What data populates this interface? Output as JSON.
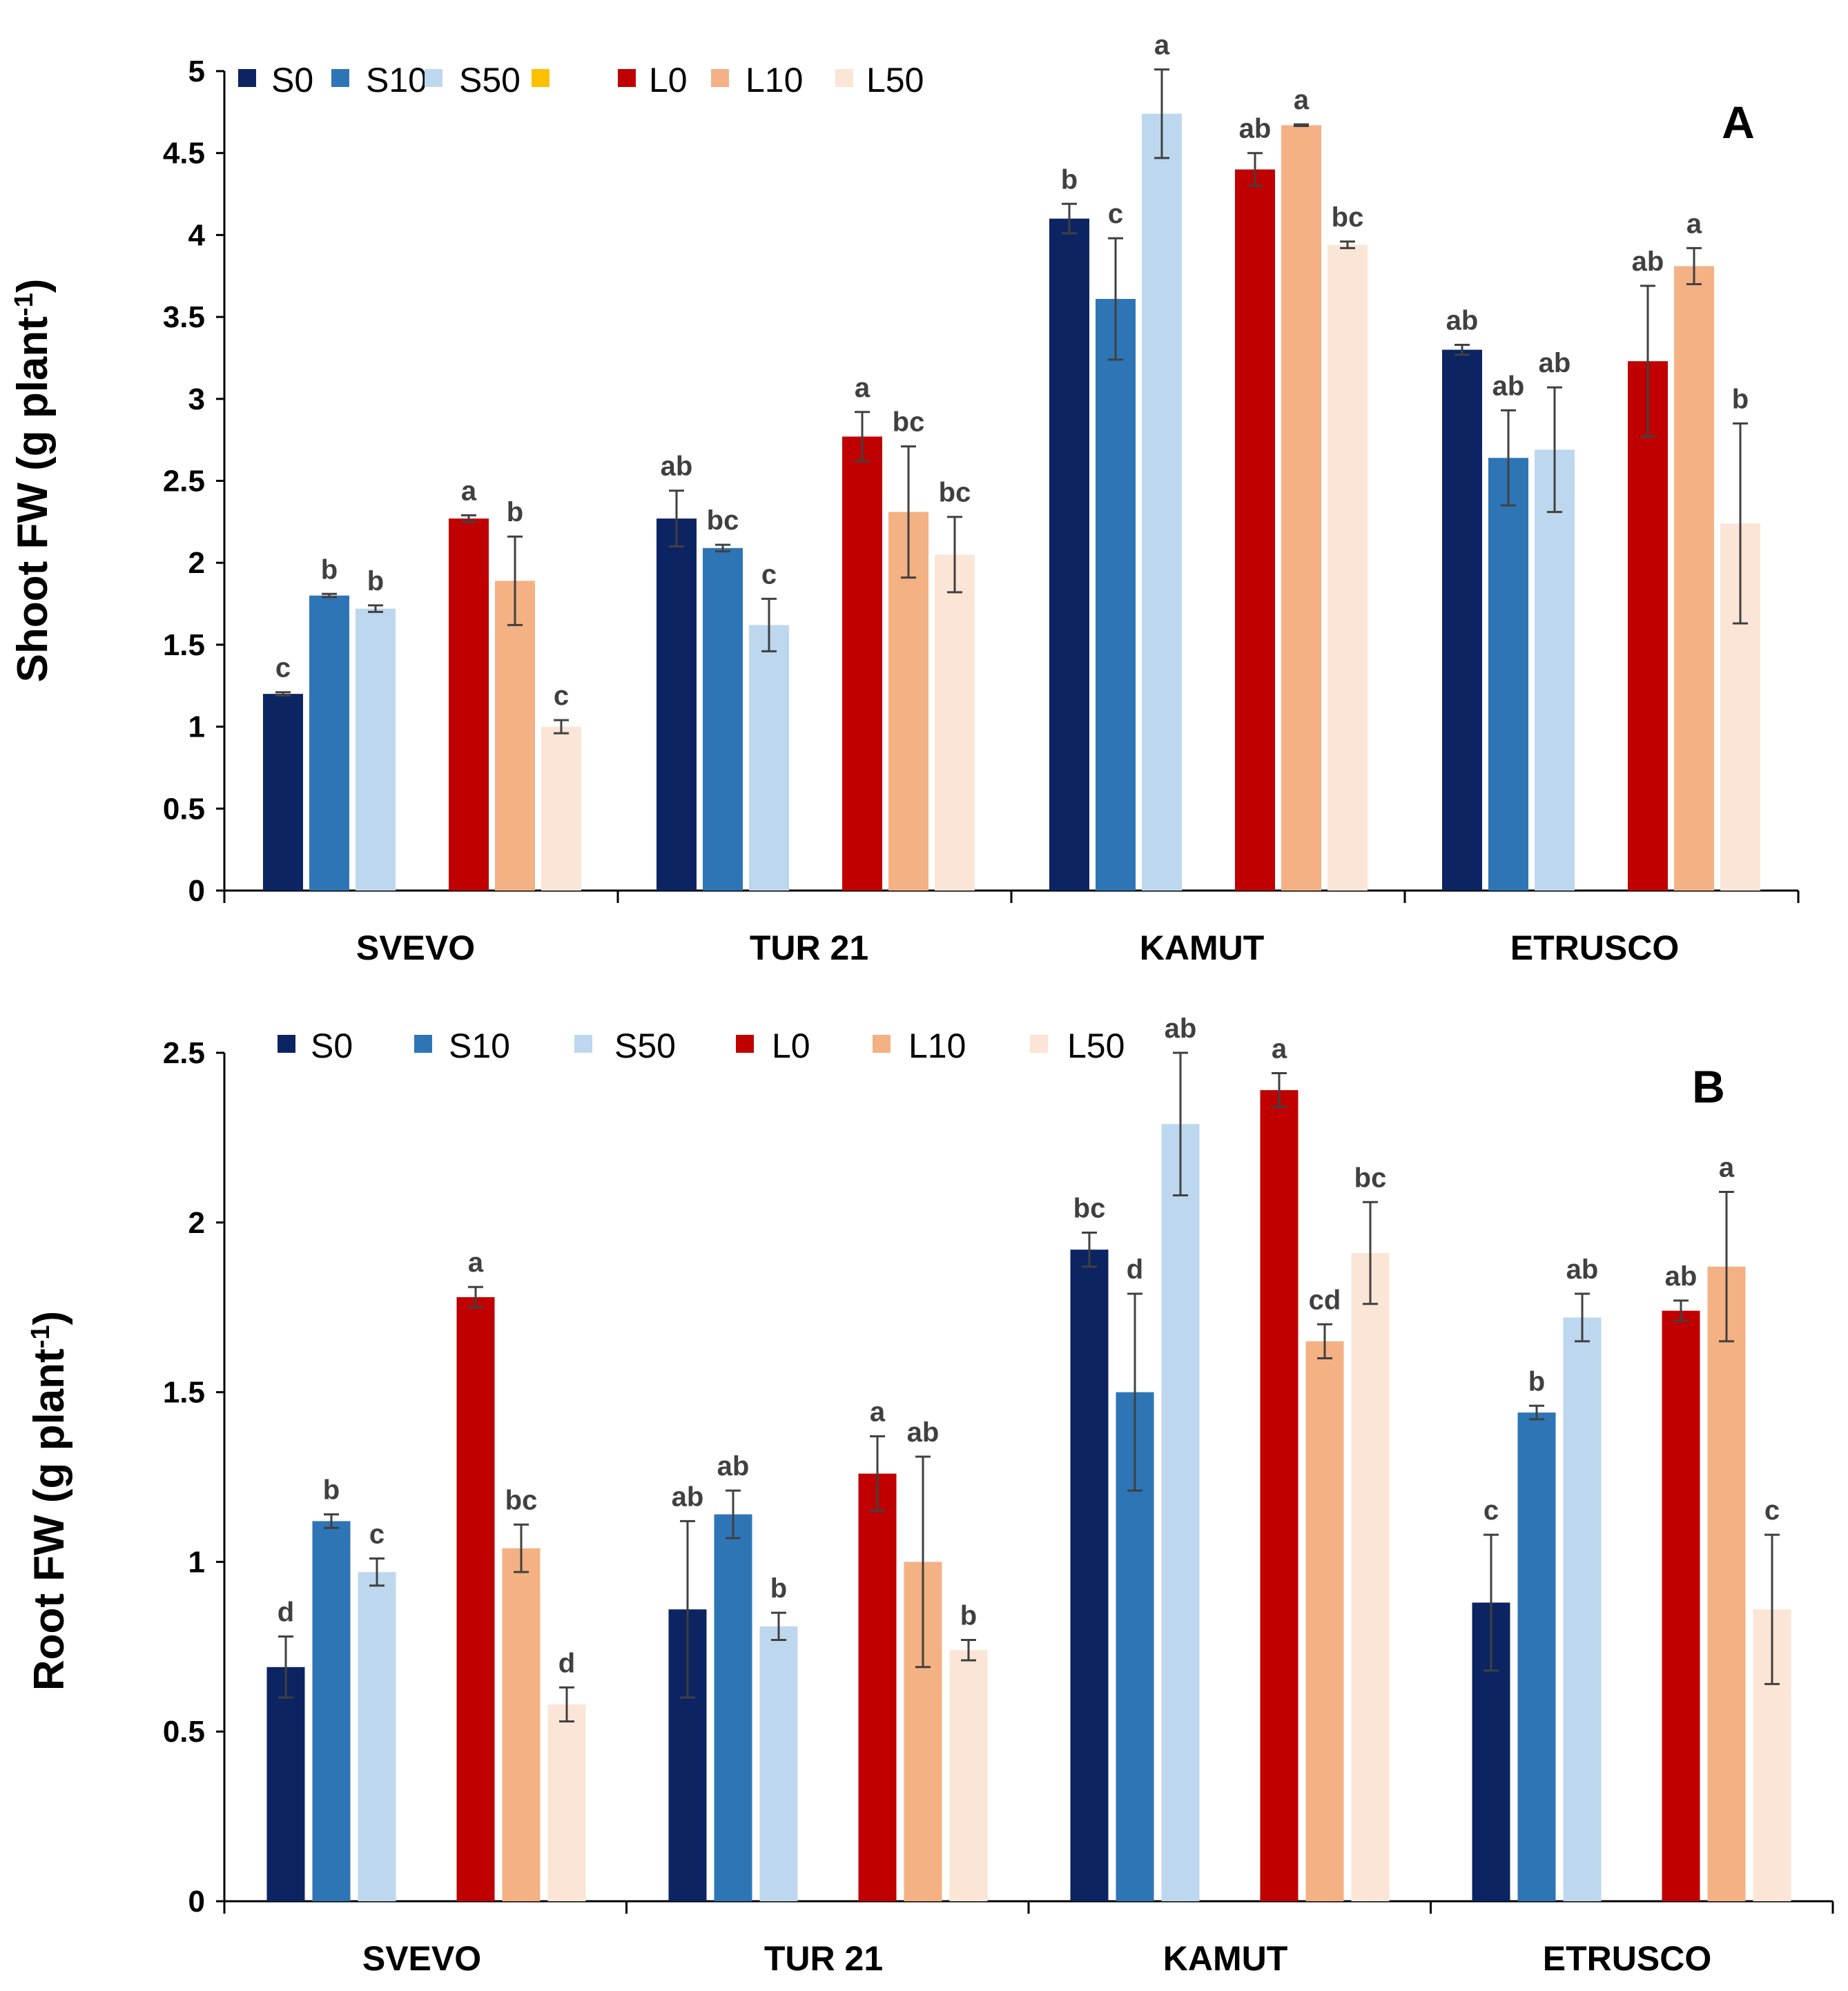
{
  "colors": {
    "S0": "#0c2461",
    "S10": "#2e75b6",
    "S50": "#bdd7ee",
    "L0": "#c00000",
    "L10": "#f4b183",
    "L50": "#fbe5d6",
    "extra": "#ffc000",
    "axis": "#000000",
    "error": "#404040",
    "sig": "#404040"
  },
  "chart_data": [
    {
      "panel": "A",
      "type": "bar",
      "ylabel": "Shoot FW (g plant",
      "ylabel_sup": "-1",
      "ylabel_end": ")",
      "ylim": [
        0,
        5
      ],
      "yticks": [
        "0",
        "0.5",
        "1",
        "1.5",
        "2",
        "2.5",
        "3",
        "3.5",
        "4",
        "4.5",
        "5"
      ],
      "categories": [
        "SVEVO",
        "TUR 21",
        "KAMUT",
        "ETRUSCO"
      ],
      "legend": [
        {
          "label": "S0",
          "color": "#0c2461"
        },
        {
          "label": "S10",
          "color": "#2e75b6"
        },
        {
          "label": "S50",
          "color": "#bdd7ee"
        },
        {
          "label": "",
          "color": "#ffc000"
        },
        {
          "label": "L0",
          "color": "#c00000"
        },
        {
          "label": "L10",
          "color": "#f4b183"
        },
        {
          "label": "L50",
          "color": "#fbe5d6"
        }
      ],
      "series": [
        {
          "name": "S0",
          "color": "#0c2461",
          "values": [
            1.2,
            2.27,
            4.1,
            3.3
          ],
          "errors": [
            0.01,
            0.17,
            0.09,
            0.03
          ],
          "letters": [
            "c",
            "ab",
            "b",
            "ab"
          ]
        },
        {
          "name": "S10",
          "color": "#2e75b6",
          "values": [
            1.8,
            2.09,
            3.61,
            2.64
          ],
          "errors": [
            0.01,
            0.02,
            0.37,
            0.29
          ],
          "letters": [
            "b",
            "bc",
            "c",
            "ab"
          ]
        },
        {
          "name": "S50",
          "color": "#bdd7ee",
          "values": [
            1.72,
            1.62,
            4.74,
            2.69
          ],
          "errors": [
            0.02,
            0.16,
            0.27,
            0.38
          ],
          "letters": [
            "b",
            "c",
            "a",
            "ab"
          ]
        },
        {
          "name": "L0",
          "color": "#c00000",
          "values": [
            2.27,
            2.77,
            4.4,
            3.23
          ],
          "errors": [
            0.02,
            0.15,
            0.1,
            0.46
          ],
          "letters": [
            "a",
            "a",
            "ab",
            "ab"
          ]
        },
        {
          "name": "L10",
          "color": "#f4b183",
          "values": [
            1.89,
            2.31,
            4.67,
            3.81
          ],
          "errors": [
            0.27,
            0.4,
            0.005,
            0.11
          ],
          "letters": [
            "b",
            "bc",
            "a",
            "a"
          ]
        },
        {
          "name": "L50",
          "color": "#fbe5d6",
          "values": [
            1.0,
            2.05,
            3.94,
            2.24
          ],
          "errors": [
            0.04,
            0.23,
            0.02,
            0.61
          ],
          "letters": [
            "c",
            "bc",
            "bc",
            "b"
          ]
        }
      ]
    },
    {
      "panel": "B",
      "type": "bar",
      "ylabel": "Root FW (g plant",
      "ylabel_sup": "-1",
      "ylabel_end": ")",
      "ylim": [
        0,
        2.5
      ],
      "yticks": [
        "0",
        "0.5",
        "1",
        "1.5",
        "2",
        "2.5"
      ],
      "categories": [
        "SVEVO",
        "TUR 21",
        "KAMUT",
        "ETRUSCO"
      ],
      "legend": [
        {
          "label": "S0",
          "color": "#0c2461"
        },
        {
          "label": "S10",
          "color": "#2e75b6"
        },
        {
          "label": "S50",
          "color": "#bdd7ee"
        },
        {
          "label": "L0",
          "color": "#c00000"
        },
        {
          "label": "L10",
          "color": "#f4b183"
        },
        {
          "label": "L50",
          "color": "#fbe5d6"
        }
      ],
      "series": [
        {
          "name": "S0",
          "color": "#0c2461",
          "values": [
            0.69,
            0.86,
            1.92,
            0.88
          ],
          "errors": [
            0.09,
            0.26,
            0.05,
            0.2
          ],
          "letters": [
            "d",
            "ab",
            "bc",
            "c"
          ]
        },
        {
          "name": "S10",
          "color": "#2e75b6",
          "values": [
            1.12,
            1.14,
            1.5,
            1.44
          ],
          "errors": [
            0.02,
            0.07,
            0.29,
            0.02
          ],
          "letters": [
            "b",
            "ab",
            "d",
            "b"
          ]
        },
        {
          "name": "S50",
          "color": "#bdd7ee",
          "values": [
            0.97,
            0.81,
            2.29,
            1.72
          ],
          "errors": [
            0.04,
            0.04,
            0.21,
            0.07
          ],
          "letters": [
            "c",
            "b",
            "ab",
            "ab"
          ]
        },
        {
          "name": "L0",
          "color": "#c00000",
          "values": [
            1.78,
            1.26,
            2.39,
            1.74
          ],
          "errors": [
            0.03,
            0.11,
            0.05,
            0.03
          ],
          "letters": [
            "a",
            "a",
            "a",
            "ab"
          ]
        },
        {
          "name": "L10",
          "color": "#f4b183",
          "values": [
            1.04,
            1.0,
            1.65,
            1.87
          ],
          "errors": [
            0.07,
            0.31,
            0.05,
            0.22
          ],
          "letters": [
            "bc",
            "ab",
            "cd",
            "a"
          ]
        },
        {
          "name": "L50",
          "color": "#fbe5d6",
          "values": [
            0.58,
            0.74,
            1.91,
            0.86
          ],
          "errors": [
            0.05,
            0.03,
            0.15,
            0.22
          ],
          "letters": [
            "d",
            "b",
            "bc",
            "c"
          ]
        }
      ]
    }
  ]
}
